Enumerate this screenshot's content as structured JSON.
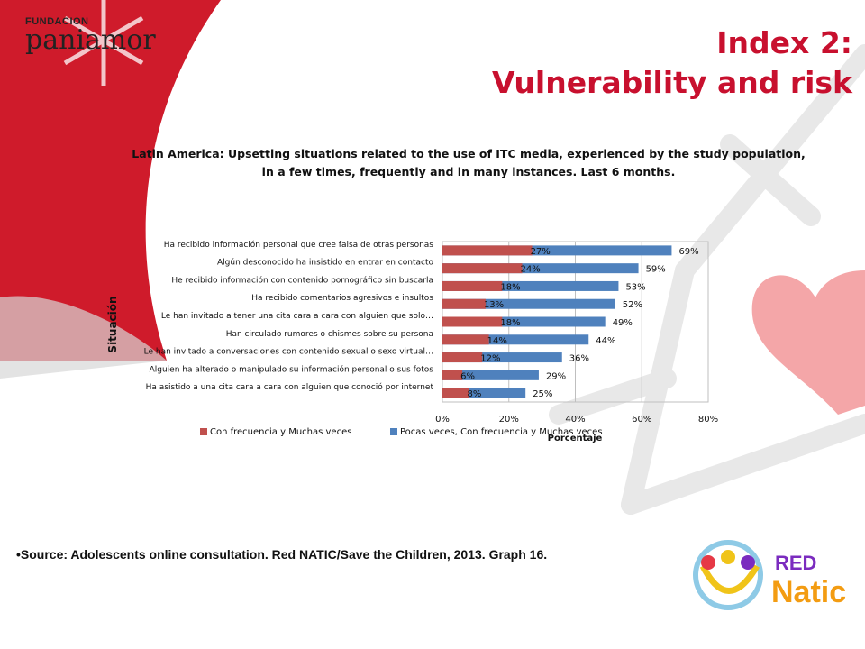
{
  "logo": {
    "small_text": "FUNDACION",
    "big_text": "paniamor"
  },
  "slide_title": {
    "line1": "Index 2:",
    "line2": "Vulnerability and risk"
  },
  "chart_data": {
    "type": "bar",
    "orientation": "horizontal",
    "stacked": false,
    "title": "Latin America: Upsetting situations related to the use of ITC media, experienced by the study population, in a few times, frequently and in many instances.  Last 6 months.",
    "title_lines": [
      "Latin America: Upsetting situations related to the use of ITC media, experienced by the study population,",
      "in a few times, frequently and in many instances.  Last 6 months."
    ],
    "xlabel": "Porcentaje",
    "ylabel": "Situación",
    "xlim": [
      0,
      80
    ],
    "xticks": [
      "0%",
      "20%",
      "40%",
      "60%",
      "80%"
    ],
    "grid": true,
    "legend_position": "bottom",
    "categories": [
      "Ha recibido información personal que cree falsa de otras personas",
      "Algún desconocido ha insistido en entrar en contacto",
      "He recibido información con contenido pornográfico sin buscarla",
      "Ha recibido comentarios agresivos e insultos",
      "Le han invitado a tener una cita cara a cara con alguien que solo…",
      "Han circulado rumores o chismes sobre su persona",
      "Le han invitado a conversaciones con contenido sexual o sexo virtual…",
      "Alguien ha alterado o manipulado su información personal o sus fotos",
      "Ha asistido a una cita cara a cara con alguien que conoció por internet"
    ],
    "series": [
      {
        "name": "Con frecuencia y Muchas veces",
        "color": "#c0504d",
        "values": [
          27,
          24,
          18,
          13,
          18,
          14,
          12,
          6,
          8
        ],
        "labels": [
          "27%",
          "24%",
          "18%",
          "13%",
          "18%",
          "14%",
          "12%",
          "6%",
          "8%"
        ]
      },
      {
        "name": "Pocas veces, Con frecuencia y Muchas veces",
        "color": "#4f81bd",
        "values": [
          69,
          59,
          53,
          52,
          49,
          44,
          36,
          29,
          25
        ],
        "labels": [
          "69%",
          "59%",
          "53%",
          "52%",
          "49%",
          "44%",
          "36%",
          "29%",
          "25%"
        ]
      }
    ]
  },
  "source_text": "•Source: Adolescents online consultation.  Red NATIC/Save the Children,  2013. Graph 16.",
  "red_natic_logo": {
    "word1": "RED",
    "word2": "Natic"
  },
  "colors": {
    "accent_red": "#c8102e",
    "heart": "#f4a6a8",
    "snowflake_gray": "#e0e0e0"
  }
}
